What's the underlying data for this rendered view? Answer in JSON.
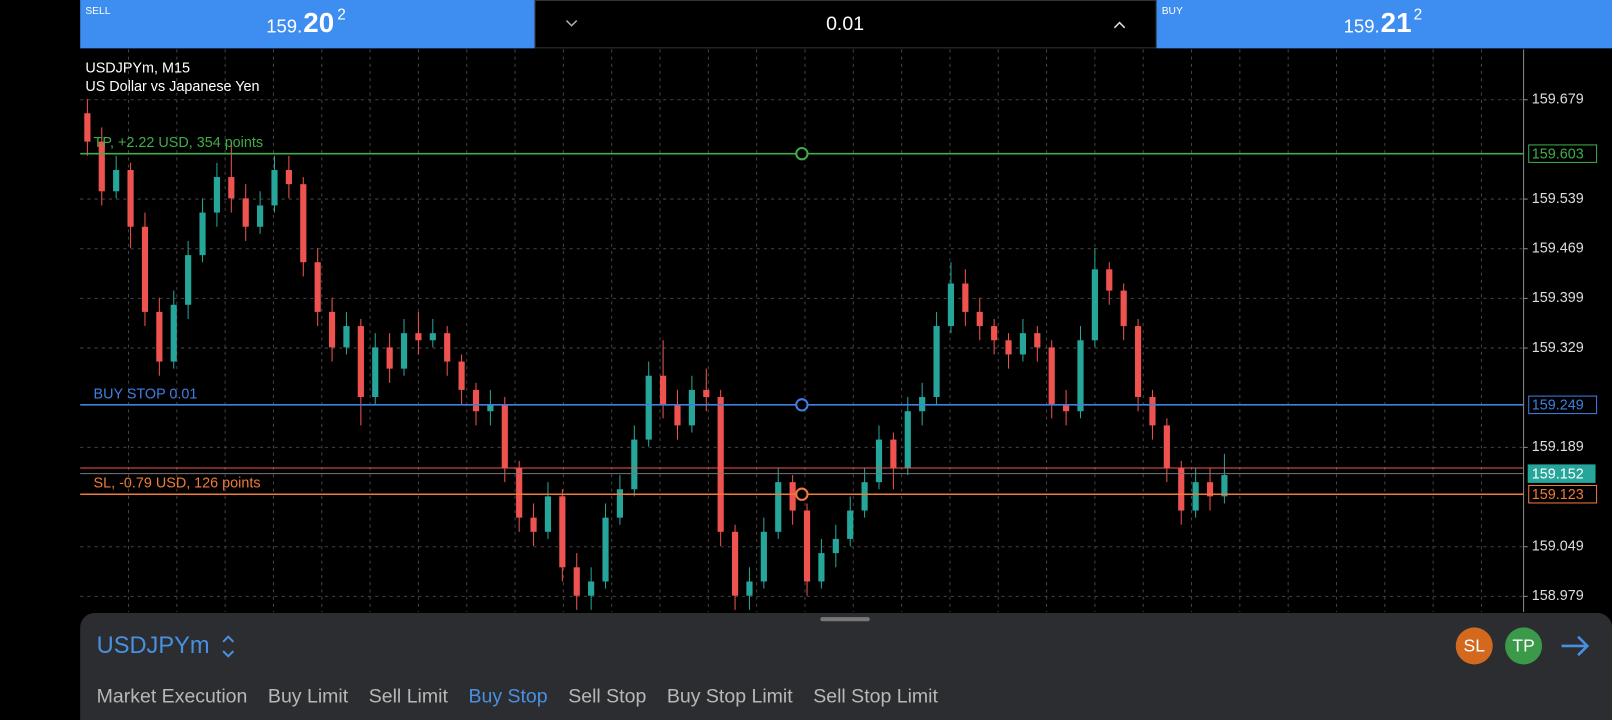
{
  "header": {
    "sell": {
      "label": "SELL",
      "price_main": "159.",
      "price_big": "20",
      "price_sup": "2"
    },
    "volume": "0.01",
    "buy": {
      "label": "BUY",
      "price_main": "159.",
      "price_big": "21",
      "price_sup": "2"
    }
  },
  "chart_data": {
    "type": "candlestick",
    "title": "USDJPYm, M15",
    "subtitle": "US Dollar vs Japanese Yen",
    "ylim": [
      158.957,
      159.75
    ],
    "yticks": [
      159.679,
      159.539,
      159.469,
      159.399,
      159.329,
      159.189,
      159.049,
      158.979
    ],
    "grid": true,
    "colors": {
      "up": "#26a69a",
      "down": "#ef5350"
    },
    "levels": [
      {
        "name": "TP, +2.22 USD, 354 points",
        "value": 159.603,
        "color": "#3fae49"
      },
      {
        "name": "BUY STOP 0.01",
        "value": 159.249,
        "color": "#3f7fe0"
      },
      {
        "name": "SL, -0.79 USD, 126 points",
        "value": 159.123,
        "color": "#f07a3a"
      }
    ],
    "bid": {
      "value": 159.152,
      "color": "#26a69a"
    },
    "ask": {
      "value": 159.16,
      "color": "#ef5350"
    },
    "candles": [
      [
        159.66,
        159.68,
        159.6,
        159.62
      ],
      [
        159.62,
        159.64,
        159.53,
        159.55
      ],
      [
        159.55,
        159.6,
        159.54,
        159.58
      ],
      [
        159.58,
        159.59,
        159.47,
        159.5
      ],
      [
        159.5,
        159.52,
        159.36,
        159.38
      ],
      [
        159.38,
        159.4,
        159.29,
        159.31
      ],
      [
        159.31,
        159.41,
        159.3,
        159.39
      ],
      [
        159.39,
        159.48,
        159.37,
        159.46
      ],
      [
        159.46,
        159.54,
        159.45,
        159.52
      ],
      [
        159.52,
        159.59,
        159.5,
        159.57
      ],
      [
        159.57,
        159.62,
        159.52,
        159.54
      ],
      [
        159.54,
        159.56,
        159.48,
        159.5
      ],
      [
        159.5,
        159.55,
        159.49,
        159.53
      ],
      [
        159.53,
        159.6,
        159.52,
        159.58
      ],
      [
        159.58,
        159.6,
        159.54,
        159.56
      ],
      [
        159.56,
        159.57,
        159.43,
        159.45
      ],
      [
        159.45,
        159.47,
        159.36,
        159.38
      ],
      [
        159.38,
        159.4,
        159.31,
        159.33
      ],
      [
        159.33,
        159.38,
        159.32,
        159.36
      ],
      [
        159.36,
        159.37,
        159.22,
        159.26
      ],
      [
        159.26,
        159.35,
        159.25,
        159.33
      ],
      [
        159.33,
        159.35,
        159.28,
        159.3
      ],
      [
        159.3,
        159.37,
        159.29,
        159.35
      ],
      [
        159.35,
        159.38,
        159.32,
        159.34
      ],
      [
        159.34,
        159.37,
        159.33,
        159.35
      ],
      [
        159.35,
        159.36,
        159.29,
        159.31
      ],
      [
        159.31,
        159.32,
        159.25,
        159.27
      ],
      [
        159.27,
        159.28,
        159.22,
        159.24
      ],
      [
        159.24,
        159.27,
        159.22,
        159.25
      ],
      [
        159.25,
        159.26,
        159.14,
        159.16
      ],
      [
        159.16,
        159.17,
        159.07,
        159.09
      ],
      [
        159.09,
        159.11,
        159.05,
        159.07
      ],
      [
        159.07,
        159.14,
        159.06,
        159.12
      ],
      [
        159.12,
        159.13,
        159,
        159.02
      ],
      [
        159.02,
        159.04,
        158.96,
        158.98
      ],
      [
        158.98,
        159.02,
        158.96,
        159
      ],
      [
        159,
        159.11,
        158.99,
        159.09
      ],
      [
        159.09,
        159.15,
        159.08,
        159.13
      ],
      [
        159.13,
        159.22,
        159.12,
        159.2
      ],
      [
        159.2,
        159.31,
        159.19,
        159.29
      ],
      [
        159.29,
        159.34,
        159.23,
        159.25
      ],
      [
        159.25,
        159.27,
        159.2,
        159.22
      ],
      [
        159.22,
        159.29,
        159.21,
        159.27
      ],
      [
        159.27,
        159.3,
        159.24,
        159.26
      ],
      [
        159.26,
        159.27,
        159.05,
        159.07
      ],
      [
        159.07,
        159.08,
        158.96,
        158.98
      ],
      [
        158.98,
        159.02,
        158.96,
        159
      ],
      [
        159,
        159.09,
        158.99,
        159.07
      ],
      [
        159.07,
        159.16,
        159.06,
        159.14
      ],
      [
        159.14,
        159.15,
        159.08,
        159.1
      ],
      [
        159.1,
        159.11,
        158.98,
        159
      ],
      [
        159,
        159.06,
        158.99,
        159.04
      ],
      [
        159.04,
        159.08,
        159.02,
        159.06
      ],
      [
        159.06,
        159.12,
        159.05,
        159.1
      ],
      [
        159.1,
        159.16,
        159.09,
        159.14
      ],
      [
        159.14,
        159.22,
        159.13,
        159.2
      ],
      [
        159.2,
        159.21,
        159.13,
        159.16
      ],
      [
        159.16,
        159.26,
        159.15,
        159.24
      ],
      [
        159.24,
        159.28,
        159.22,
        159.26
      ],
      [
        159.26,
        159.38,
        159.25,
        159.36
      ],
      [
        159.36,
        159.45,
        159.35,
        159.42
      ],
      [
        159.42,
        159.44,
        159.36,
        159.38
      ],
      [
        159.38,
        159.4,
        159.34,
        159.36
      ],
      [
        159.36,
        159.37,
        159.32,
        159.34
      ],
      [
        159.34,
        159.35,
        159.3,
        159.32
      ],
      [
        159.32,
        159.37,
        159.31,
        159.35
      ],
      [
        159.35,
        159.36,
        159.31,
        159.33
      ],
      [
        159.33,
        159.34,
        159.23,
        159.25
      ],
      [
        159.25,
        159.27,
        159.22,
        159.24
      ],
      [
        159.24,
        159.36,
        159.23,
        159.34
      ],
      [
        159.34,
        159.47,
        159.33,
        159.44
      ],
      [
        159.44,
        159.45,
        159.39,
        159.41
      ],
      [
        159.41,
        159.42,
        159.34,
        159.36
      ],
      [
        159.36,
        159.37,
        159.24,
        159.26
      ],
      [
        159.26,
        159.27,
        159.2,
        159.22
      ],
      [
        159.22,
        159.23,
        159.14,
        159.16
      ],
      [
        159.16,
        159.17,
        159.08,
        159.1
      ],
      [
        159.1,
        159.16,
        159.09,
        159.14
      ],
      [
        159.14,
        159.16,
        159.1,
        159.12
      ],
      [
        159.12,
        159.18,
        159.11,
        159.15
      ]
    ]
  },
  "panel": {
    "symbol": "USDJPYm",
    "buttons": [
      "SL",
      "TP"
    ],
    "tabs": [
      "Market Execution",
      "Buy Limit",
      "Sell Limit",
      "Buy Stop",
      "Sell Stop",
      "Buy Stop Limit",
      "Sell Stop Limit"
    ],
    "active_tab": 3
  }
}
